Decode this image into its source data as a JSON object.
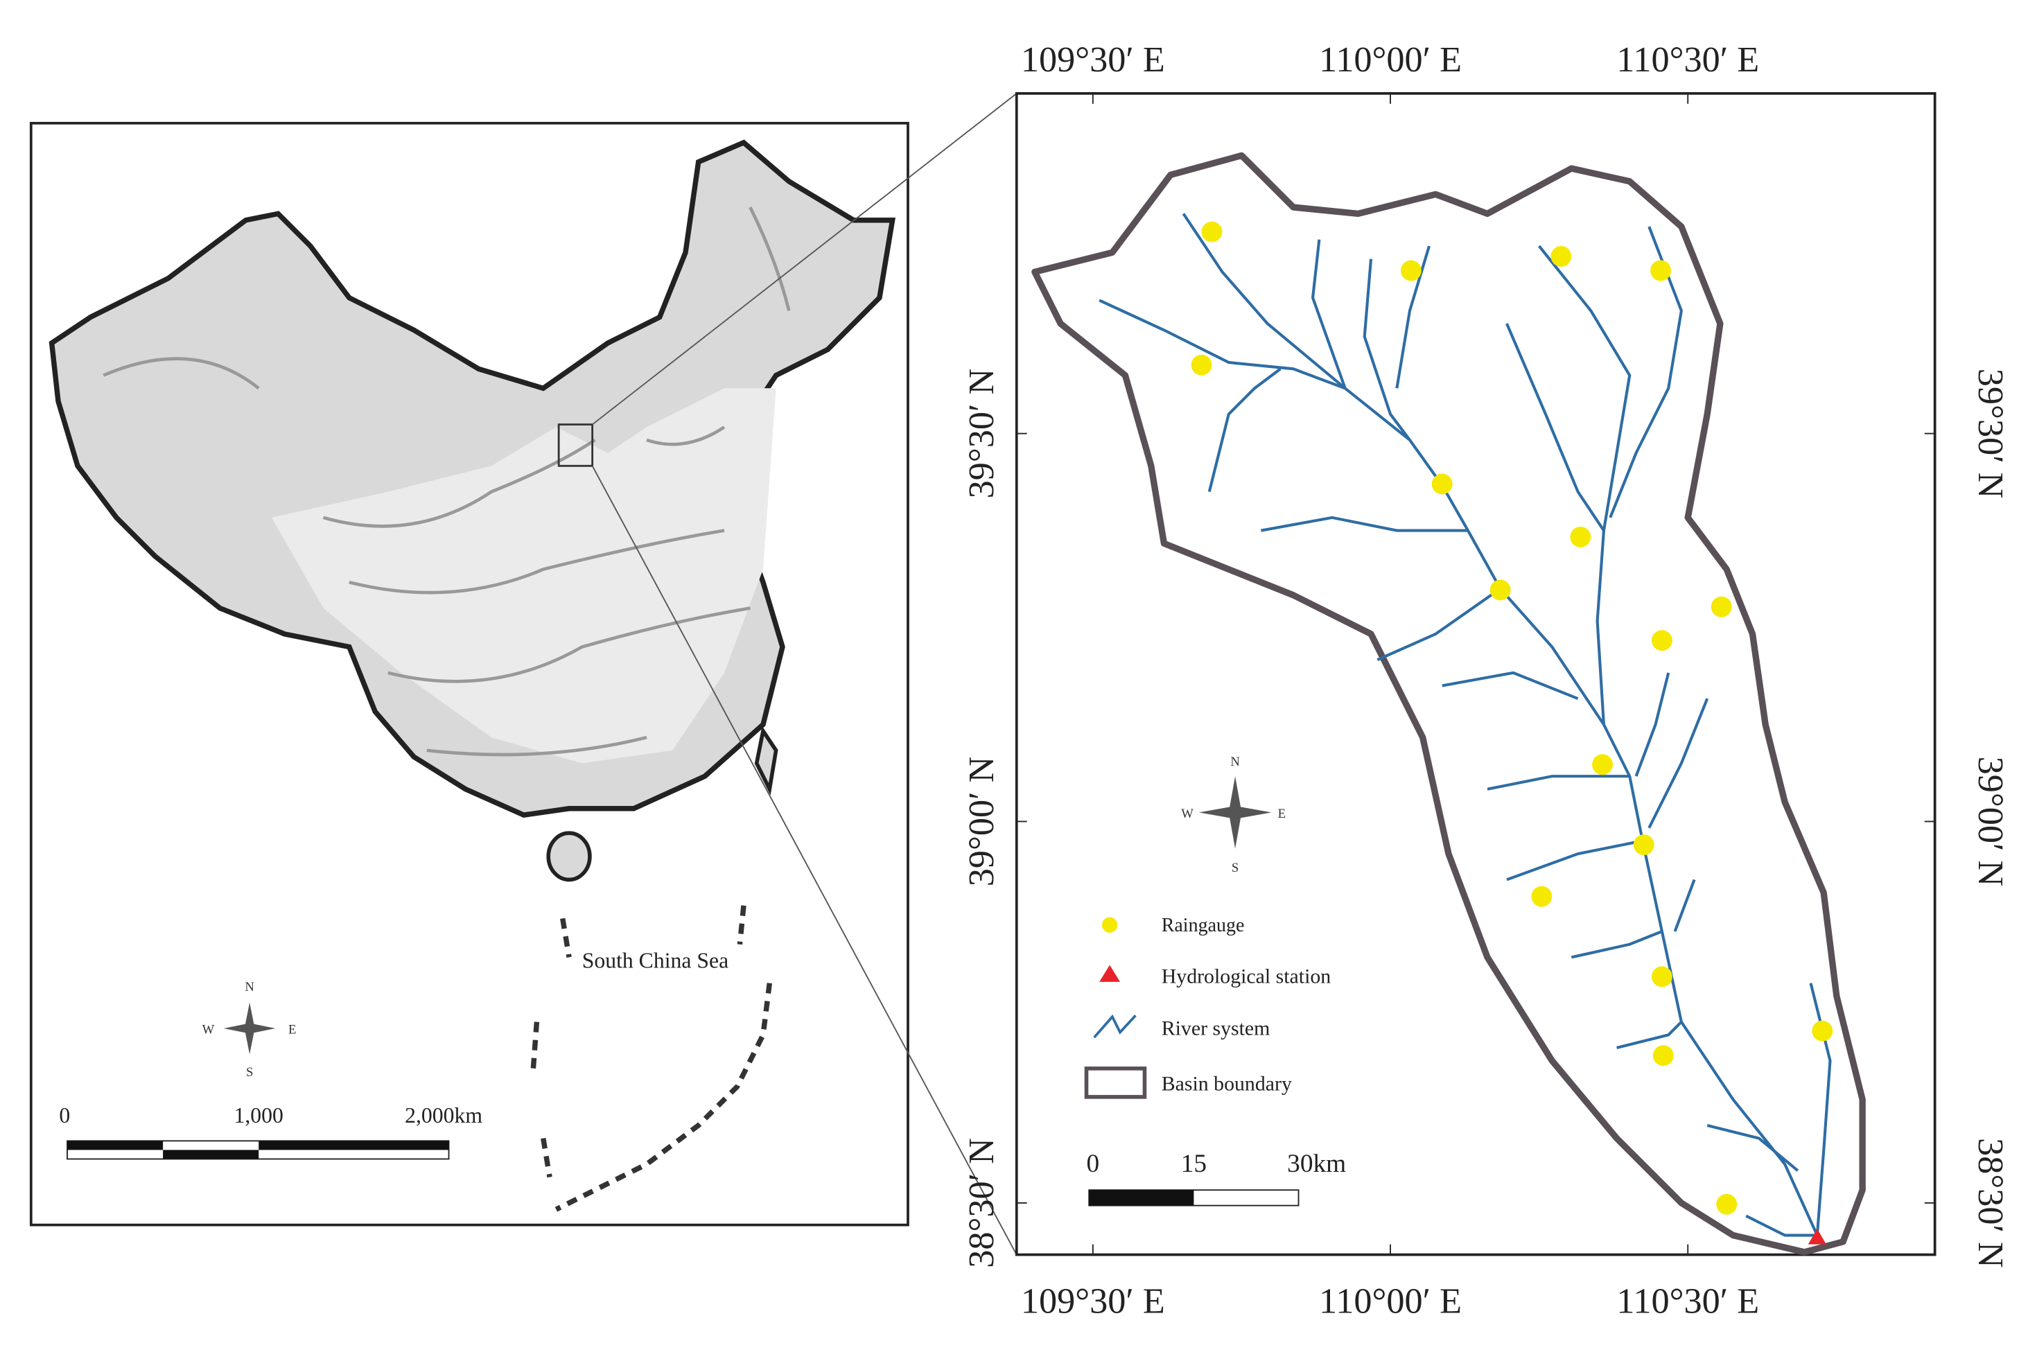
{
  "left_map": {
    "sea_label": "South China Sea",
    "compass": {
      "n": "N",
      "s": "S",
      "e": "E",
      "w": "W"
    },
    "scale": [
      "0",
      "1,000",
      "2,000km"
    ]
  },
  "right_map": {
    "lon_labels_top": [
      "109°30′ E",
      "110°00′ E",
      "110°30′ E"
    ],
    "lon_labels_bottom": [
      "109°30′ E",
      "110°00′ E",
      "110°30′ E"
    ],
    "lat_labels_left": [
      "39°30′ N",
      "39°00′ N",
      "38°30′ N"
    ],
    "lat_labels_right": [
      "39°30′ N",
      "39°00′ N",
      "38°30′ N"
    ],
    "compass": {
      "n": "N",
      "s": "S",
      "e": "E",
      "w": "W"
    },
    "legend": [
      "Raingauge",
      "Hydrological station",
      "River system",
      "Basin boundary"
    ],
    "scale": [
      "0",
      "15",
      "30km"
    ]
  }
}
